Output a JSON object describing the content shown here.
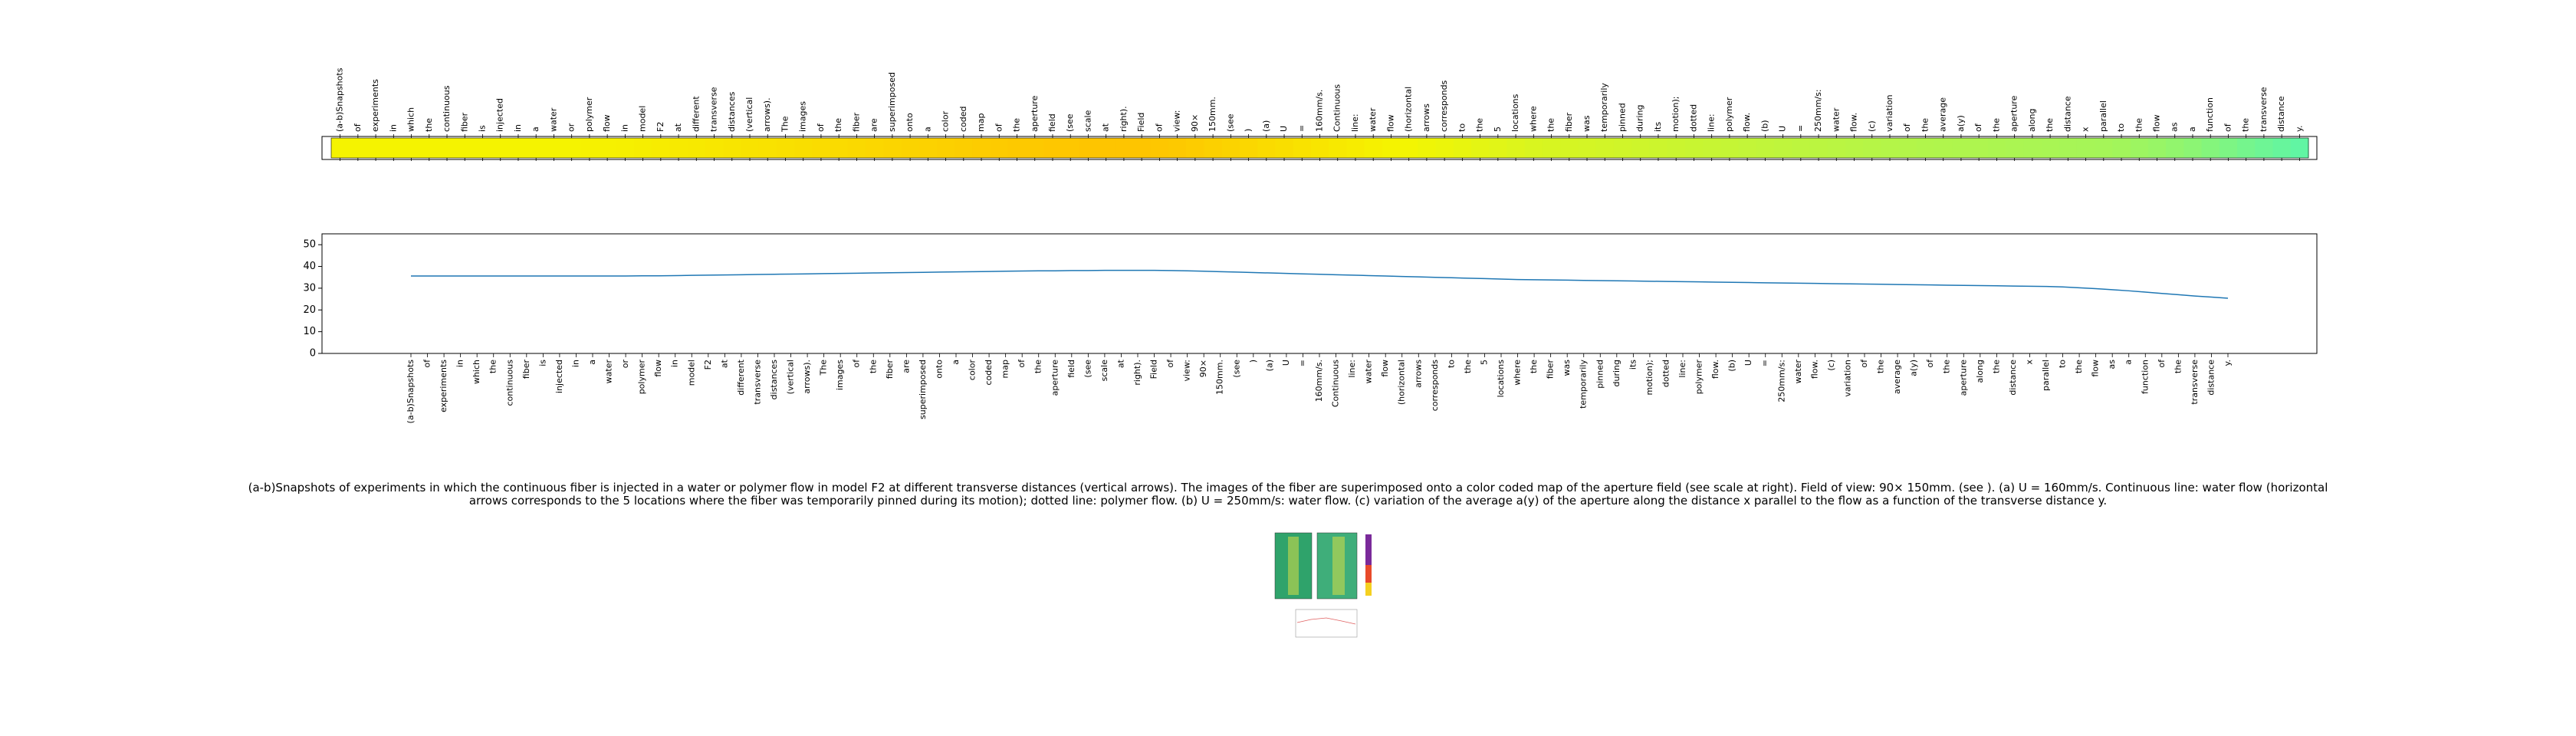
{
  "chart_data": [
    {
      "type": "heatmap",
      "categories": [
        "(a-b)Snapshots",
        "of",
        "experiments",
        "in",
        "which",
        "the",
        "continuous",
        "fiber",
        "is",
        "injected",
        "in",
        "a",
        "water",
        "or",
        "polymer",
        "flow",
        "in",
        "model",
        "F2",
        "at",
        "different",
        "transverse",
        "distances",
        "(vertical",
        "arrows).",
        "The",
        "images",
        "of",
        "the",
        "fiber",
        "are",
        "superimposed",
        "onto",
        "a",
        "color",
        "coded",
        "map",
        "of",
        "the",
        "aperture",
        "field",
        "(see",
        "scale",
        "at",
        "right).",
        "Field",
        "of",
        "view:",
        "90×",
        "150mm.",
        "(see",
        ")",
        "(a)",
        "U",
        "=",
        "160mm/s.",
        "Continuous",
        "line:",
        "water",
        "flow",
        "(horizontal",
        "arrows",
        "corresponds",
        "to",
        "the",
        "5",
        "locations",
        "where",
        "the",
        "fiber",
        "was",
        "temporarily",
        "pinned",
        "during",
        "its",
        "motion);",
        "dotted",
        "line:",
        "polymer",
        "flow.",
        "(b)",
        "U",
        "=",
        "250mm/s:",
        "water",
        "flow.",
        "(c)",
        "variation",
        "of",
        "the",
        "average",
        "a(y)",
        "of",
        "the",
        "aperture",
        "along",
        "the",
        "distance",
        "x",
        "parallel",
        "to",
        "the",
        "flow",
        "as",
        "a",
        "function",
        "of",
        "the",
        "transverse",
        "distance",
        "y."
      ],
      "values": [
        35.6,
        35.6,
        35.6,
        35.6,
        35.6,
        35.6,
        35.6,
        35.6,
        35.6,
        35.6,
        35.6,
        35.6,
        35.6,
        35.6,
        35.7,
        35.7,
        35.8,
        35.9,
        36.0,
        36.1,
        36.2,
        36.3,
        36.4,
        36.5,
        36.6,
        36.7,
        36.8,
        36.9,
        37.0,
        37.1,
        37.2,
        37.3,
        37.4,
        37.5,
        37.6,
        37.7,
        37.8,
        37.9,
        38.0,
        38.0,
        38.1,
        38.1,
        38.2,
        38.2,
        38.2,
        38.2,
        38.1,
        38.0,
        37.8,
        37.6,
        37.4,
        37.2,
        37.0,
        36.8,
        36.6,
        36.4,
        36.2,
        36.0,
        35.8,
        35.6,
        35.4,
        35.2,
        35.0,
        34.8,
        34.6,
        34.4,
        34.2,
        34.0,
        33.9,
        33.8,
        33.7,
        33.6,
        33.5,
        33.4,
        33.3,
        33.2,
        33.1,
        33.0,
        32.9,
        32.8,
        32.7,
        32.6,
        32.5,
        32.4,
        32.3,
        32.2,
        32.1,
        32.0,
        31.9,
        31.8,
        31.7,
        31.6,
        31.5,
        31.4,
        31.3,
        31.2,
        31.1,
        31.0,
        30.9,
        30.8,
        30.6,
        30.2,
        29.8,
        29.3,
        28.8,
        28.2,
        27.6,
        27.0,
        26.4,
        25.9,
        25.4
      ],
      "colorscale": [
        [
          25,
          "#5cf5a8"
        ],
        [
          32,
          "#b4f548"
        ],
        [
          35.5,
          "#f5f500"
        ],
        [
          38.5,
          "#ffc000"
        ]
      ]
    },
    {
      "type": "line",
      "color": "#1f77b4",
      "categories": [
        "(a-b)Snapshots",
        "of",
        "experiments",
        "in",
        "which",
        "the",
        "continuous",
        "fiber",
        "is",
        "injected",
        "in",
        "a",
        "water",
        "or",
        "polymer",
        "flow",
        "in",
        "model",
        "F2",
        "at",
        "different",
        "transverse",
        "distances",
        "(vertical",
        "arrows).",
        "The",
        "images",
        "of",
        "the",
        "fiber",
        "are",
        "superimposed",
        "onto",
        "a",
        "color",
        "coded",
        "map",
        "of",
        "the",
        "aperture",
        "field",
        "(see",
        "scale",
        "at",
        "right).",
        "Field",
        "of",
        "view:",
        "90×",
        "150mm.",
        "(see",
        ")",
        "(a)",
        "U",
        "=",
        "160mm/s.",
        "Continuous",
        "line:",
        "water",
        "flow",
        "(horizontal",
        "arrows",
        "corresponds",
        "to",
        "the",
        "5",
        "locations",
        "where",
        "the",
        "fiber",
        "was",
        "temporarily",
        "pinned",
        "during",
        "its",
        "motion);",
        "dotted",
        "line:",
        "polymer",
        "flow.",
        "(b)",
        "U",
        "=",
        "250mm/s:",
        "water",
        "flow.",
        "(c)",
        "variation",
        "of",
        "the",
        "average",
        "a(y)",
        "of",
        "the",
        "aperture",
        "along",
        "the",
        "distance",
        "x",
        "parallel",
        "to",
        "the",
        "flow",
        "as",
        "a",
        "function",
        "of",
        "the",
        "transverse",
        "distance",
        "y."
      ],
      "values": [
        35.6,
        35.6,
        35.6,
        35.6,
        35.6,
        35.6,
        35.6,
        35.6,
        35.6,
        35.6,
        35.6,
        35.6,
        35.6,
        35.6,
        35.7,
        35.7,
        35.8,
        35.9,
        36.0,
        36.1,
        36.2,
        36.3,
        36.4,
        36.5,
        36.6,
        36.7,
        36.8,
        36.9,
        37.0,
        37.1,
        37.2,
        37.3,
        37.4,
        37.5,
        37.6,
        37.7,
        37.8,
        37.9,
        38.0,
        38.0,
        38.1,
        38.1,
        38.2,
        38.2,
        38.2,
        38.2,
        38.1,
        38.0,
        37.8,
        37.6,
        37.4,
        37.2,
        37.0,
        36.8,
        36.6,
        36.4,
        36.2,
        36.0,
        35.8,
        35.6,
        35.4,
        35.2,
        35.0,
        34.8,
        34.6,
        34.4,
        34.2,
        34.0,
        33.9,
        33.8,
        33.7,
        33.6,
        33.5,
        33.4,
        33.3,
        33.2,
        33.1,
        33.0,
        32.9,
        32.8,
        32.7,
        32.6,
        32.5,
        32.4,
        32.3,
        32.2,
        32.1,
        32.0,
        31.9,
        31.8,
        31.7,
        31.6,
        31.5,
        31.4,
        31.3,
        31.2,
        31.1,
        31.0,
        30.9,
        30.8,
        30.6,
        30.2,
        29.8,
        29.3,
        28.8,
        28.2,
        27.6,
        27.0,
        26.4,
        25.9,
        25.4
      ],
      "ylim": [
        0,
        55
      ],
      "yticks": [
        0,
        10,
        20,
        30,
        40,
        50
      ]
    }
  ],
  "caption": "(a-b)Snapshots of experiments in which the continuous fiber is injected in a water or polymer flow in model F2 at different transverse distances (vertical arrows). The images of the fiber are superimposed onto a color coded map of the aperture field (see scale at right). Field of view: 90× 150mm. (see ). (a) U = 160mm/s. Continuous line: water flow (horizontal arrows corresponds to the 5 locations where the fiber was temporarily pinned during its motion); dotted line: polymer flow. (b) U = 250mm/s: water flow. (c) variation of the average a(y) of the aperture along the distance x parallel to the flow as a function of the transverse distance y."
}
